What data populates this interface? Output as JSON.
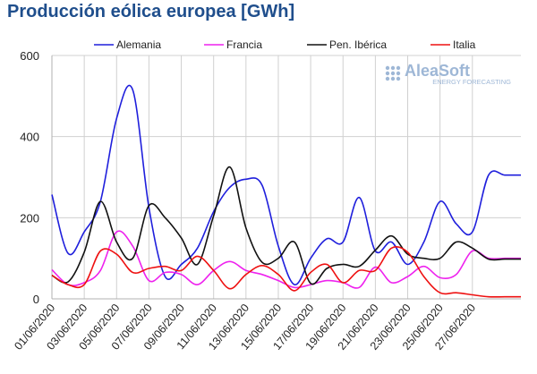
{
  "chart_data": {
    "type": "line",
    "title": "Producción eólica europea [GWh]",
    "xlabel": "",
    "ylabel": "",
    "ylim": [
      0,
      600
    ],
    "yticks": [
      0,
      200,
      400,
      600
    ],
    "grid": true,
    "legend_position": "top",
    "x": [
      "01/06/2020",
      "02/06/2020",
      "03/06/2020",
      "04/06/2020",
      "05/06/2020",
      "06/06/2020",
      "07/06/2020",
      "08/06/2020",
      "09/06/2020",
      "10/06/2020",
      "11/06/2020",
      "12/06/2020",
      "13/06/2020",
      "14/06/2020",
      "15/06/2020",
      "16/06/2020",
      "17/06/2020",
      "18/06/2020",
      "19/06/2020",
      "20/06/2020",
      "21/06/2020",
      "22/06/2020",
      "23/06/2020",
      "24/06/2020",
      "25/06/2020",
      "26/06/2020",
      "27/06/2020",
      "28/06/2020",
      "29/06/2020",
      "30/06/2020"
    ],
    "x_tick_labels": [
      "01/06/2020",
      "03/06/2020",
      "05/06/2020",
      "07/06/2020",
      "09/06/2020",
      "11/06/2020",
      "13/06/2020",
      "15/06/2020",
      "17/06/2020",
      "19/06/2020",
      "21/06/2020",
      "23/06/2020",
      "25/06/2020",
      "27/06/2020"
    ],
    "series": [
      {
        "name": "Alemania",
        "color": "#1f1fdc",
        "values": [
          257,
          112,
          165,
          240,
          445,
          515,
          225,
          55,
          85,
          125,
          215,
          275,
          295,
          280,
          130,
          35,
          100,
          148,
          140,
          250,
          118,
          140,
          85,
          140,
          240,
          185,
          165,
          305,
          305,
          305
        ]
      },
      {
        "name": "Francia",
        "color": "#ee22ee",
        "values": [
          72,
          35,
          40,
          70,
          165,
          130,
          45,
          65,
          60,
          35,
          70,
          92,
          70,
          60,
          45,
          28,
          35,
          45,
          40,
          28,
          78,
          40,
          55,
          80,
          52,
          60,
          118,
          100,
          100,
          100
        ]
      },
      {
        "name": "Pen. Ibérica",
        "color": "#111111",
        "values": [
          58,
          42,
          115,
          240,
          140,
          100,
          230,
          200,
          150,
          85,
          205,
          325,
          175,
          90,
          100,
          140,
          38,
          75,
          85,
          80,
          120,
          155,
          110,
          100,
          100,
          140,
          125,
          98,
          98,
          98
        ]
      },
      {
        "name": "Italia",
        "color": "#ee1111",
        "values": [
          58,
          35,
          35,
          118,
          110,
          65,
          75,
          80,
          70,
          105,
          70,
          25,
          60,
          82,
          60,
          20,
          65,
          85,
          40,
          70,
          70,
          125,
          115,
          55,
          15,
          15,
          10,
          5,
          5,
          5
        ]
      }
    ]
  },
  "logo": {
    "text": "AleaSoft",
    "subtitle": "ENERGY FORECASTING",
    "color": "#9eb7d6"
  }
}
